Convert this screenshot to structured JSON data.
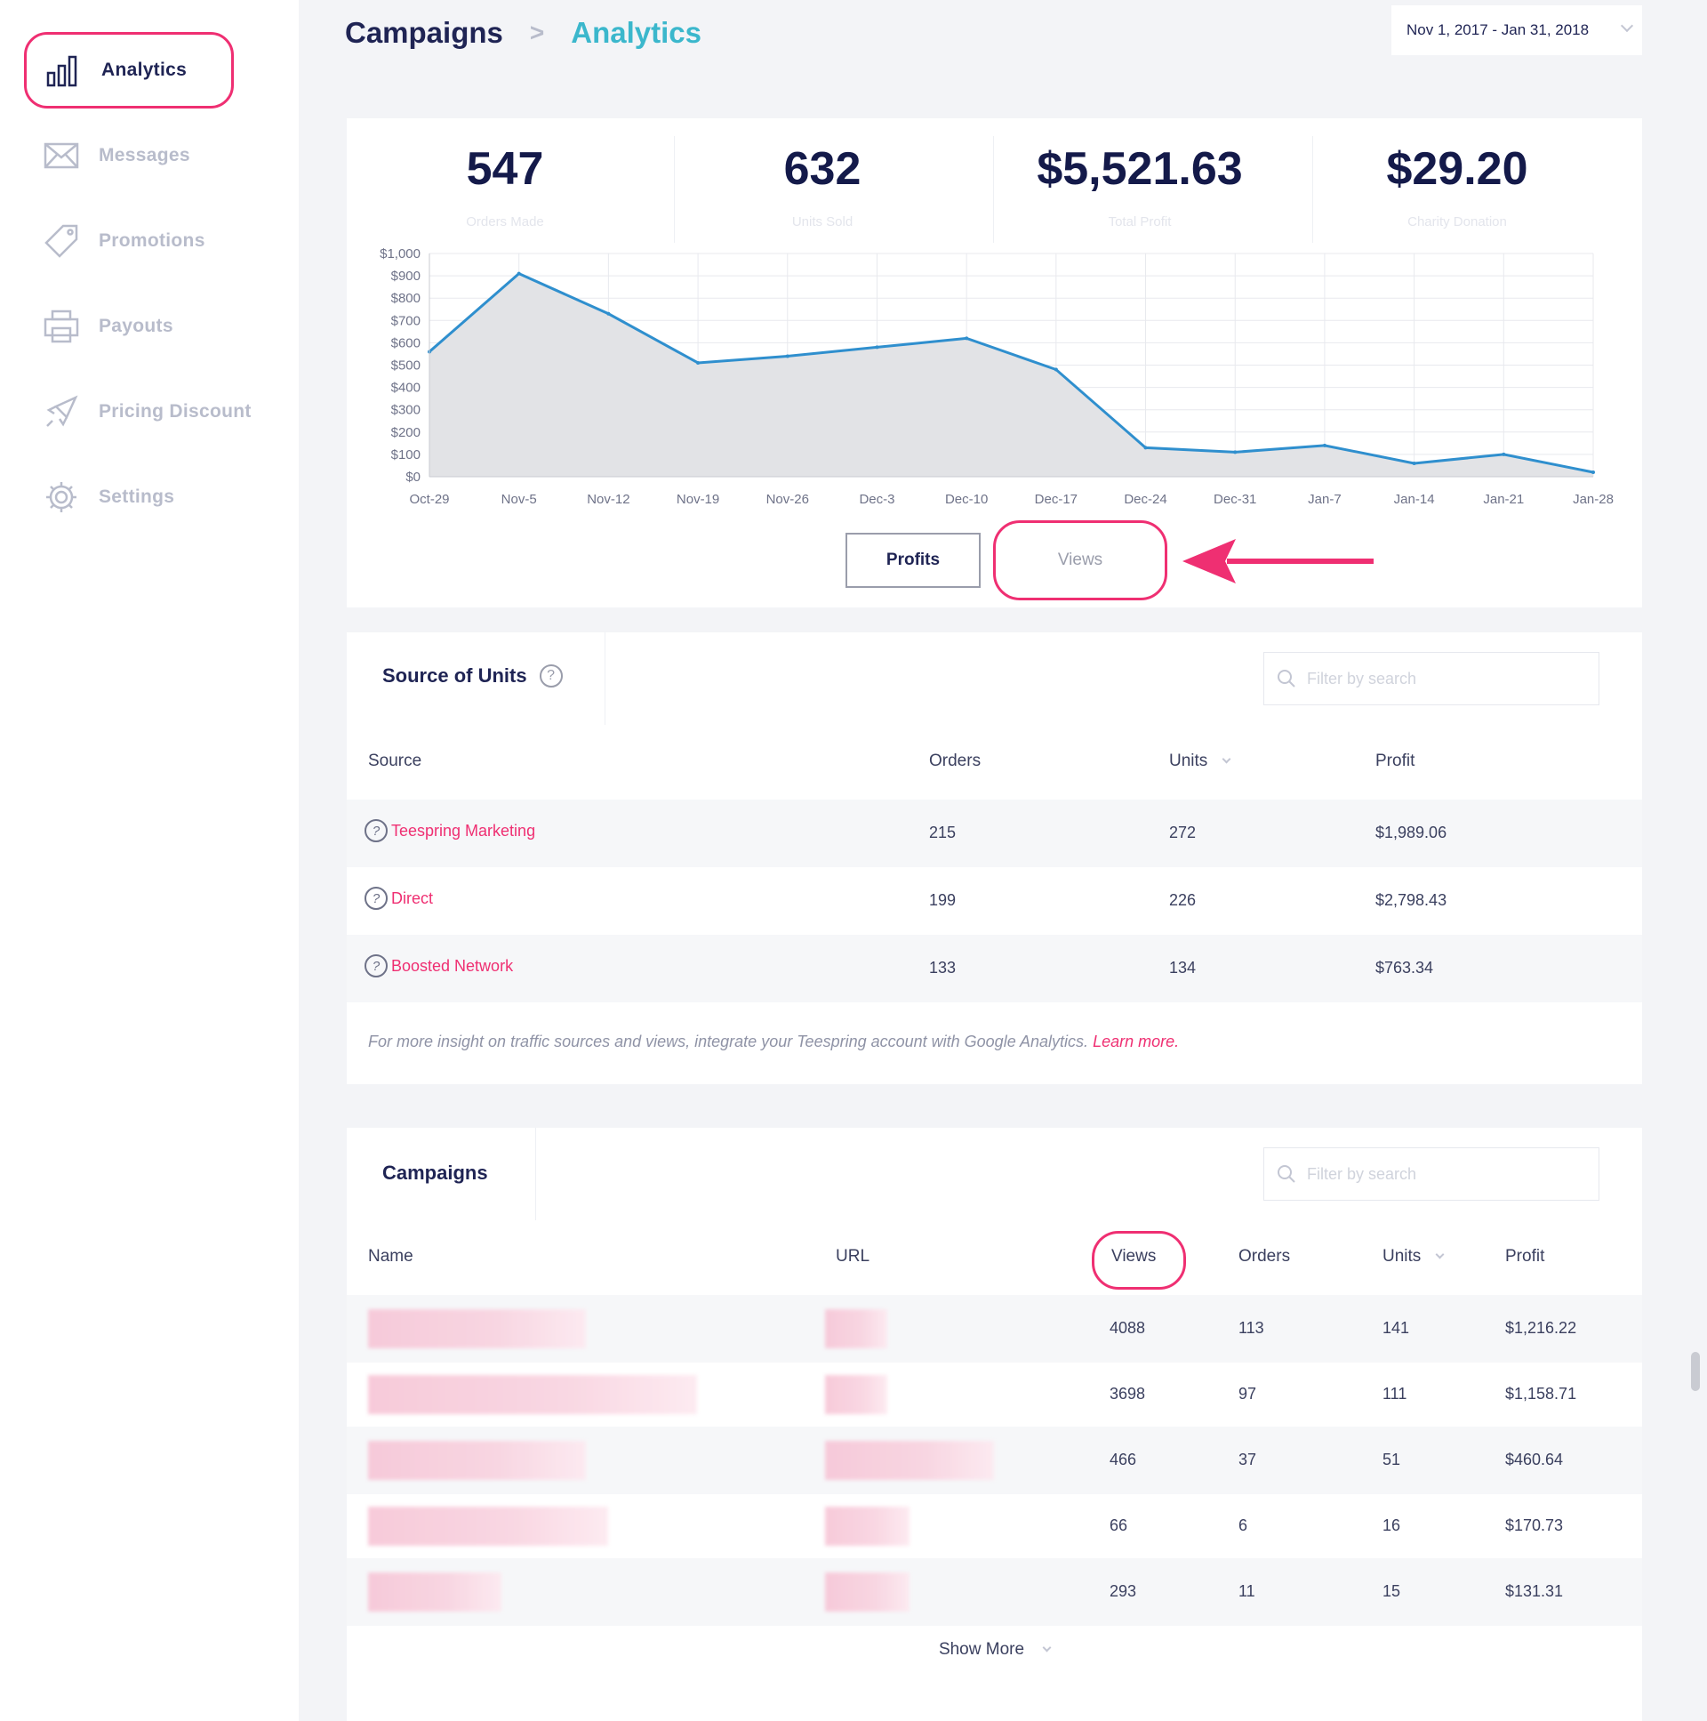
{
  "sidebar": {
    "items": [
      {
        "label": "Analytics",
        "icon": "bar-chart-icon",
        "active": true
      },
      {
        "label": "Messages",
        "icon": "envelope-icon"
      },
      {
        "label": "Promotions",
        "icon": "tag-icon"
      },
      {
        "label": "Payouts",
        "icon": "printer-icon"
      },
      {
        "label": "Pricing Discount",
        "icon": "rocket-icon"
      },
      {
        "label": "Settings",
        "icon": "gear-icon"
      }
    ]
  },
  "header": {
    "breadcrumb_root": "Campaigns",
    "breadcrumb_sep": ">",
    "breadcrumb_current": "Analytics",
    "date_range": "Nov 1, 2017 - Jan 31, 2018"
  },
  "stats": [
    {
      "value": "547",
      "label": "Orders Made"
    },
    {
      "value": "632",
      "label": "Units Sold"
    },
    {
      "value": "$5,521.63",
      "label": "Total Profit"
    },
    {
      "value": "$29.20",
      "label": "Charity Donation"
    }
  ],
  "chart_data": {
    "type": "area",
    "categories": [
      "Oct-29",
      "Nov-5",
      "Nov-12",
      "Nov-19",
      "Nov-26",
      "Dec-3",
      "Dec-10",
      "Dec-17",
      "Dec-24",
      "Dec-31",
      "Jan-7",
      "Jan-14",
      "Jan-21",
      "Jan-28"
    ],
    "values": [
      560,
      910,
      730,
      510,
      540,
      580,
      620,
      480,
      130,
      110,
      140,
      60,
      100,
      20
    ],
    "ylim": [
      0,
      1000
    ],
    "yticks": [
      "$0",
      "$100",
      "$200",
      "$300",
      "$400",
      "$500",
      "$600",
      "$700",
      "$800",
      "$900",
      "$1,000"
    ],
    "grid": true,
    "line_color": "#2f8fce",
    "fill_color": "#e2e3e6"
  },
  "toggle": {
    "profits_label": "Profits",
    "views_label": "Views"
  },
  "annotation_color": "#ef2f72",
  "source": {
    "title": "Source of Units",
    "help": "?",
    "search_placeholder": "Filter by search",
    "columns": [
      "Source",
      "Orders",
      "Units",
      "Profit"
    ],
    "rows": [
      {
        "source": "Teespring Marketing",
        "orders": "215",
        "units": "272",
        "profit": "$1,989.06"
      },
      {
        "source": "Direct",
        "orders": "199",
        "units": "226",
        "profit": "$2,798.43"
      },
      {
        "source": "Boosted Network",
        "orders": "133",
        "units": "134",
        "profit": "$763.34"
      }
    ],
    "note": "For more insight on traffic sources and views, integrate your Teespring account with Google Analytics.",
    "learn_more": "Learn more."
  },
  "campaigns": {
    "title": "Campaigns",
    "search_placeholder": "Filter by search",
    "columns": [
      "Name",
      "URL",
      "Views",
      "Orders",
      "Units",
      "Profit"
    ],
    "rows": [
      {
        "views": "4088",
        "orders": "113",
        "units": "141",
        "profit": "$1,216.22"
      },
      {
        "views": "3698",
        "orders": "97",
        "units": "111",
        "profit": "$1,158.71"
      },
      {
        "views": "466",
        "orders": "37",
        "units": "51",
        "profit": "$460.64"
      },
      {
        "views": "66",
        "orders": "6",
        "units": "16",
        "profit": "$170.73"
      },
      {
        "views": "293",
        "orders": "11",
        "units": "15",
        "profit": "$131.31"
      }
    ],
    "show_more": "Show More"
  }
}
